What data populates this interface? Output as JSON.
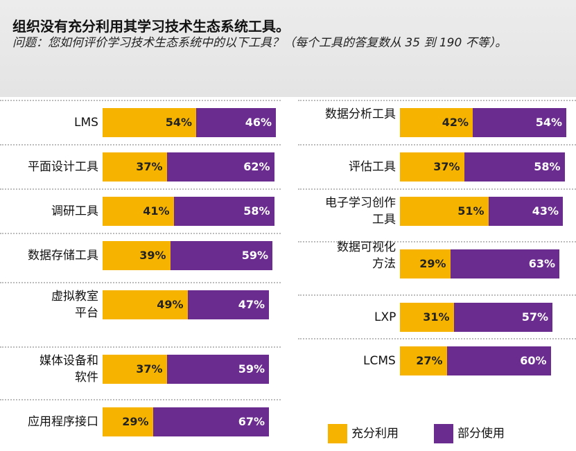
{
  "chart_data": {
    "type": "bar",
    "stacked": true,
    "orientation": "horizontal",
    "title": "组织没有充分利用其学习技术生态系统工具。",
    "subtitle": "问题：您如何评价学习技术生态系统中的以下工具？（每个工具的答复数从 35 到 190 不等）。",
    "categories": [
      "LMS",
      "平面设计工具",
      "调研工具",
      "数据存储工具",
      "虚拟教室平台",
      "媒体设备和软件",
      "应用程序接口",
      "数据分析工具",
      "评估工具",
      "电子学习创作工具",
      "数据可视化方法",
      "LXP",
      "LCMS"
    ],
    "xlim": [
      0,
      100
    ],
    "series": [
      {
        "name": "充分利用",
        "color": "#f6b400",
        "values": [
          54,
          37,
          41,
          39,
          49,
          37,
          29,
          42,
          37,
          51,
          29,
          31,
          27
        ],
        "value_labels": [
          "54%",
          "37%",
          "41%",
          "39%",
          "49%",
          "37%",
          "29%",
          "42%",
          "37%",
          "51%",
          "29%",
          "31%",
          "27%"
        ]
      },
      {
        "name": "部分使用",
        "color": "#6b2c8f",
        "values": [
          46,
          62,
          58,
          59,
          47,
          59,
          67,
          54,
          58,
          43,
          63,
          57,
          60
        ],
        "value_labels": [
          "46%",
          "62%",
          "58%",
          "59%",
          "47%",
          "59%",
          "67%",
          "54%",
          "58%",
          "43%",
          "63%",
          "57%",
          "60%"
        ]
      }
    ],
    "legend": "bottom-right"
  }
}
